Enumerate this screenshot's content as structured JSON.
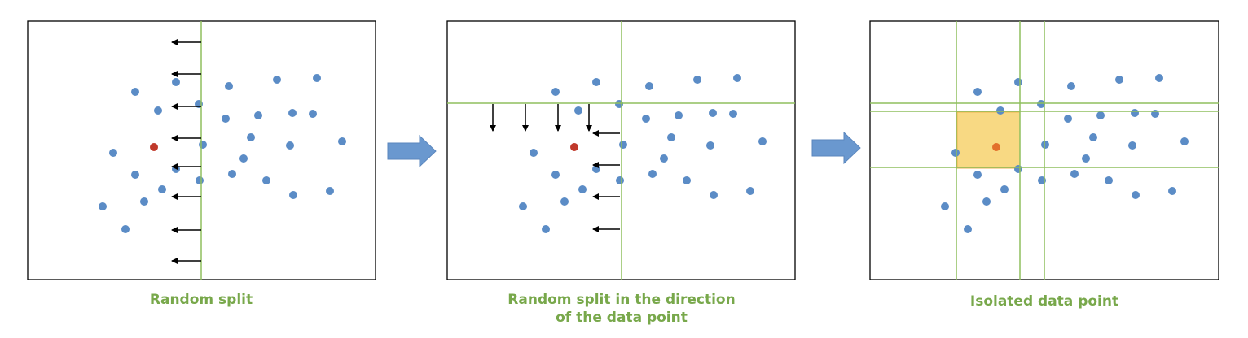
{
  "panels": [
    {
      "caption": [
        "Random split"
      ]
    },
    {
      "caption": [
        "Random split in the direction",
        "of the data point"
      ]
    },
    {
      "caption": [
        "Isolated data point"
      ]
    }
  ]
}
